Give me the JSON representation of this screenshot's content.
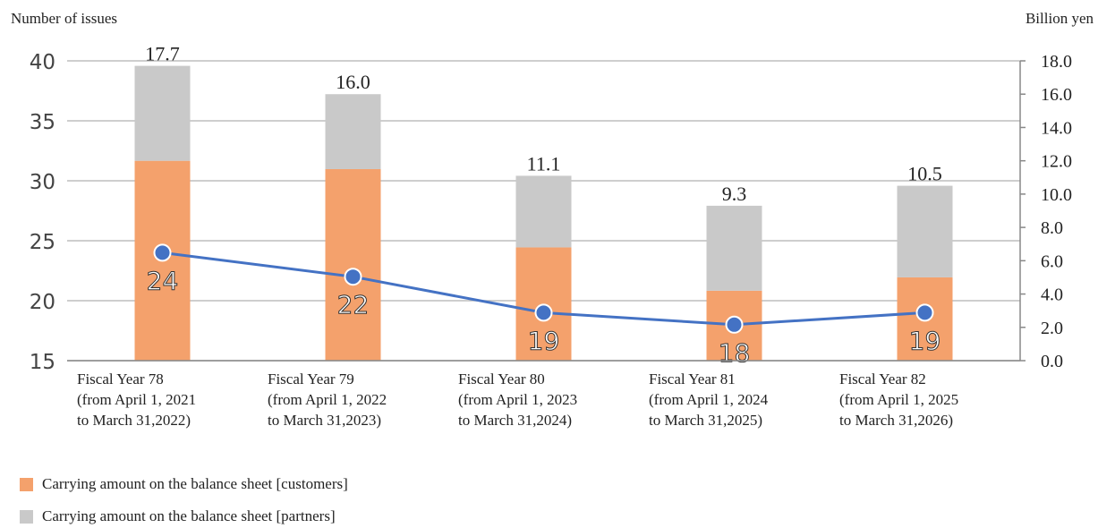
{
  "chart_data": {
    "type": "bar",
    "left_axis_title": "Number of issues",
    "right_axis_title": "Billion yen",
    "left_ylim": [
      15,
      40
    ],
    "left_ticks": [
      "15",
      "20",
      "25",
      "30",
      "35",
      "40"
    ],
    "right_ylim": [
      0,
      18
    ],
    "right_ticks": [
      "0.0",
      "2.0",
      "4.0",
      "6.0",
      "8.0",
      "10.0",
      "12.0",
      "14.0",
      "16.0",
      "18.0"
    ],
    "categories": [
      [
        "Fiscal Year 78",
        "(from April 1, 2021",
        "to March 31,2022)"
      ],
      [
        "Fiscal Year 79",
        "(from April 1, 2022",
        "to March 31,2023)"
      ],
      [
        "Fiscal Year 80",
        "(from April 1, 2023",
        "to March 31,2024)"
      ],
      [
        "Fiscal Year 81",
        "(from April 1, 2024",
        "to March 31,2025)"
      ],
      [
        "Fiscal Year 82",
        "(from April 1, 2025",
        "to March 31,2026)"
      ]
    ],
    "series": [
      {
        "name": "Carrying amount on the balance sheet [customers]",
        "axis": "right",
        "type": "bar-stacked",
        "color": "#f4a16c",
        "values": [
          12.0,
          11.5,
          6.8,
          4.2,
          5.0
        ]
      },
      {
        "name": "Carrying amount on the balance sheet [partners]",
        "axis": "right",
        "type": "bar-stacked",
        "color": "#c9c9c9",
        "values": [
          5.7,
          4.5,
          4.3,
          5.1,
          5.5
        ]
      },
      {
        "axis": "left",
        "type": "line",
        "color": "#4472c4",
        "values": [
          24,
          22,
          19,
          18,
          19
        ]
      }
    ],
    "totals": [
      "17.7",
      "16.0",
      "11.1",
      "9.3",
      "10.5"
    ],
    "line_labels": [
      "24",
      "22",
      "19",
      "18",
      "19"
    ],
    "grid": true
  }
}
